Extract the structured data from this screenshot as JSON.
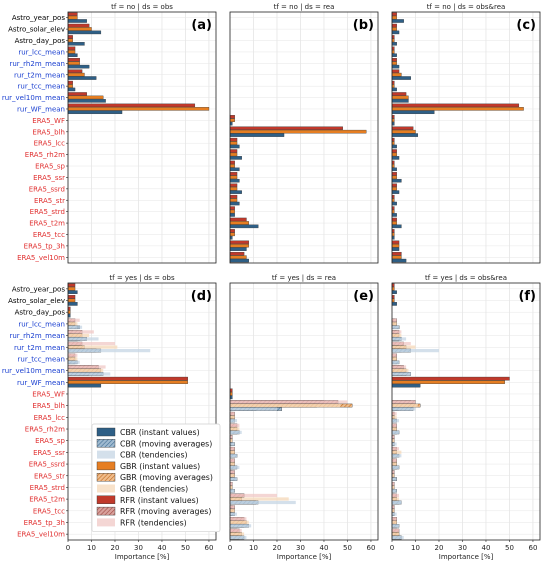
{
  "chart_data": {
    "type": "bar",
    "orientation": "horizontal",
    "xlabel": "Importance [%]",
    "xlim": [
      0,
      63
    ],
    "xticks": [
      0,
      10,
      20,
      30,
      40,
      50,
      60
    ],
    "grid": true,
    "features": [
      {
        "name": "Astro_year_pos",
        "color": "#000000"
      },
      {
        "name": "Astro_solar_elev",
        "color": "#000000"
      },
      {
        "name": "Astro_day_pos",
        "color": "#000000"
      },
      {
        "name": "rur_lcc_mean",
        "color": "#1a3fd0"
      },
      {
        "name": "rur_rh2m_mean",
        "color": "#1a3fd0"
      },
      {
        "name": "rur_t2m_mean",
        "color": "#1a3fd0"
      },
      {
        "name": "rur_tcc_mean",
        "color": "#1a3fd0"
      },
      {
        "name": "rur_vel10m_mean",
        "color": "#1a3fd0"
      },
      {
        "name": "rur_WF_mean",
        "color": "#1a3fd0"
      },
      {
        "name": "ERA5_WF",
        "color": "#e03030"
      },
      {
        "name": "ERA5_blh",
        "color": "#e03030"
      },
      {
        "name": "ERA5_lcc",
        "color": "#e03030"
      },
      {
        "name": "ERA5_rh2m",
        "color": "#e03030"
      },
      {
        "name": "ERA5_sp",
        "color": "#e03030"
      },
      {
        "name": "ERA5_ssr",
        "color": "#e03030"
      },
      {
        "name": "ERA5_ssrd",
        "color": "#e03030"
      },
      {
        "name": "ERA5_str",
        "color": "#e03030"
      },
      {
        "name": "ERA5_strd",
        "color": "#e03030"
      },
      {
        "name": "ERA5_t2m",
        "color": "#e03030"
      },
      {
        "name": "ERA5_tcc",
        "color": "#e03030"
      },
      {
        "name": "ERA5_tp_3h",
        "color": "#e03030"
      },
      {
        "name": "ERA5_vel10m",
        "color": "#e03030"
      }
    ],
    "legend": {
      "placement": "lower-left of panel (d)",
      "entries": [
        {
          "label": "CBR (instant values)",
          "model": "CBR",
          "kind": "instant"
        },
        {
          "label": "CBR (moving averages)",
          "model": "CBR",
          "kind": "moving"
        },
        {
          "label": "CBR (tendencies)",
          "model": "CBR",
          "kind": "tendency"
        },
        {
          "label": "GBR (instant values)",
          "model": "GBR",
          "kind": "instant"
        },
        {
          "label": "GBR (moving averages)",
          "model": "GBR",
          "kind": "moving"
        },
        {
          "label": "GBR (tendencies)",
          "model": "GBR",
          "kind": "tendency"
        },
        {
          "label": "RFR (instant values)",
          "model": "RFR",
          "kind": "instant"
        },
        {
          "label": "RFR (moving averages)",
          "model": "RFR",
          "kind": "moving"
        },
        {
          "label": "RFR (tendencies)",
          "model": "RFR",
          "kind": "tendency"
        }
      ]
    },
    "colors": {
      "RFR": {
        "instant": "#c0392b",
        "moving": "#c98b86",
        "tendency": "#f0c8c5"
      },
      "GBR": {
        "instant": "#e67e22",
        "moving": "#e8a66a",
        "tendency": "#f6d8b8"
      },
      "CBR": {
        "instant": "#2e5f86",
        "moving": "#6e95b5",
        "tendency": "#c6d6e4"
      }
    },
    "panels": [
      {
        "title": "tf = no | ds = obs",
        "letter": "(a)",
        "features": [
          "Astro_year_pos",
          "Astro_solar_elev",
          "Astro_day_pos",
          "rur_lcc_mean",
          "rur_rh2m_mean",
          "rur_t2m_mean",
          "rur_tcc_mean",
          "rur_vel10m_mean",
          "rur_WF_mean"
        ],
        "RFR": {
          "instant": [
            4,
            9,
            2,
            3,
            5,
            6,
            2,
            8,
            54
          ]
        },
        "GBR": {
          "instant": [
            4,
            10,
            2,
            3,
            5,
            7,
            2,
            15,
            60
          ]
        },
        "CBR": {
          "instant": [
            8,
            14,
            7,
            4,
            9,
            12,
            3,
            16,
            23
          ]
        }
      },
      {
        "title": "tf = no | ds = rea",
        "letter": "(b)",
        "features": [
          "ERA5_WF",
          "ERA5_blh",
          "ERA5_lcc",
          "ERA5_rh2m",
          "ERA5_sp",
          "ERA5_ssr",
          "ERA5_ssrd",
          "ERA5_str",
          "ERA5_strd",
          "ERA5_t2m",
          "ERA5_tcc",
          "ERA5_tp_3h",
          "ERA5_vel10m"
        ],
        "RFR": {
          "instant": [
            2,
            48,
            3,
            3,
            2,
            3,
            3,
            3,
            2,
            7,
            2,
            8,
            6
          ]
        },
        "GBR": {
          "instant": [
            2,
            58,
            3,
            3,
            2,
            3,
            3,
            3,
            2,
            8,
            2,
            8,
            7
          ]
        },
        "CBR": {
          "instant": [
            1,
            23,
            4,
            5,
            4,
            4,
            5,
            4,
            2,
            12,
            1,
            7,
            8
          ]
        }
      },
      {
        "title": "tf = no | ds = obs&rea",
        "letter": "(c)",
        "features": [
          "Astro_year_pos",
          "Astro_solar_elev",
          "Astro_day_pos",
          "rur_lcc_mean",
          "rur_rh2m_mean",
          "rur_t2m_mean",
          "rur_tcc_mean",
          "rur_vel10m_mean",
          "rur_WF_mean",
          "ERA5_WF",
          "ERA5_blh",
          "ERA5_lcc",
          "ERA5_rh2m",
          "ERA5_sp",
          "ERA5_ssr",
          "ERA5_ssrd",
          "ERA5_str",
          "ERA5_strd",
          "ERA5_t2m",
          "ERA5_tcc",
          "ERA5_tp_3h",
          "ERA5_vel10m"
        ],
        "RFR": {
          "instant": [
            2,
            2,
            1,
            1,
            2,
            3,
            1,
            6,
            54,
            1,
            9,
            1,
            2,
            1,
            2,
            2,
            1,
            1,
            2,
            1,
            3,
            4
          ]
        },
        "GBR": {
          "instant": [
            2,
            2,
            1,
            1,
            2,
            4,
            1,
            7,
            56,
            1,
            10,
            1,
            2,
            1,
            2,
            2,
            1,
            1,
            2,
            1,
            3,
            4
          ]
        },
        "CBR": {
          "instant": [
            5,
            3,
            2,
            2,
            3,
            8,
            2,
            7,
            18,
            1,
            11,
            2,
            3,
            2,
            4,
            3,
            2,
            2,
            4,
            1,
            3,
            6
          ]
        }
      },
      {
        "title": "tf = yes | ds = obs",
        "letter": "(d)",
        "features": [
          "Astro_year_pos",
          "Astro_solar_elev",
          "Astro_day_pos",
          "rur_lcc_mean",
          "rur_rh2m_mean",
          "rur_t2m_mean",
          "rur_tcc_mean",
          "rur_vel10m_mean",
          "rur_WF_mean"
        ],
        "RFR": {
          "instant": [
            3,
            3,
            1,
            1,
            2,
            4,
            1,
            10,
            51
          ],
          "moving": [
            0,
            0,
            0,
            3,
            6,
            6,
            3,
            13,
            0
          ],
          "tendency": [
            0,
            0,
            0,
            5,
            11,
            20,
            4,
            16,
            0
          ]
        },
        "GBR": {
          "instant": [
            3,
            3,
            1,
            1,
            2,
            5,
            1,
            13,
            51
          ],
          "moving": [
            0,
            0,
            0,
            3,
            6,
            7,
            3,
            14,
            0
          ],
          "tendency": [
            0,
            0,
            0,
            4,
            9,
            21,
            4,
            15,
            0
          ]
        },
        "CBR": {
          "instant": [
            4,
            4,
            1,
            5,
            5,
            12,
            3,
            9,
            14
          ],
          "moving": [
            0,
            0,
            0,
            4,
            8,
            14,
            4,
            15,
            0
          ],
          "tendency": [
            0,
            0,
            0,
            6,
            13,
            35,
            5,
            18,
            0
          ]
        }
      },
      {
        "title": "tf = yes | ds = rea",
        "letter": "(e)",
        "features": [
          "ERA5_WF",
          "ERA5_blh",
          "ERA5_lcc",
          "ERA5_rh2m",
          "ERA5_sp",
          "ERA5_ssr",
          "ERA5_ssrd",
          "ERA5_str",
          "ERA5_strd",
          "ERA5_t2m",
          "ERA5_tcc",
          "ERA5_tp_3h",
          "ERA5_vel10m"
        ],
        "RFR": {
          "instant": [
            1,
            40,
            1,
            2,
            1,
            1,
            1,
            1,
            1,
            6,
            1,
            5,
            3
          ],
          "moving": [
            0,
            46,
            2,
            3,
            1,
            2,
            2,
            2,
            1,
            6,
            2,
            6,
            4
          ],
          "tendency": [
            0,
            50,
            2,
            4,
            1,
            2,
            2,
            2,
            1,
            20,
            2,
            7,
            5
          ]
        },
        "GBR": {
          "instant": [
            1,
            37,
            1,
            2,
            1,
            1,
            1,
            1,
            1,
            5,
            1,
            5,
            3
          ],
          "moving": [
            0,
            52,
            2,
            3,
            1,
            2,
            2,
            2,
            1,
            5,
            2,
            7,
            5
          ],
          "tendency": [
            0,
            47,
            2,
            4,
            1,
            2,
            2,
            2,
            1,
            25,
            2,
            8,
            6
          ]
        },
        "CBR": {
          "instant": [
            1,
            11,
            2,
            3,
            1,
            2,
            2,
            2,
            1,
            11,
            1,
            6,
            4
          ],
          "moving": [
            0,
            22,
            2,
            4,
            2,
            3,
            3,
            3,
            2,
            12,
            2,
            8,
            6
          ],
          "tendency": [
            0,
            20,
            3,
            5,
            2,
            3,
            4,
            3,
            2,
            28,
            3,
            9,
            7
          ]
        }
      },
      {
        "title": "tf = yes | ds = obs&rea",
        "letter": "(f)",
        "features": [
          "Astro_year_pos",
          "Astro_solar_elev",
          "Astro_day_pos",
          "rur_lcc_mean",
          "rur_rh2m_mean",
          "rur_t2m_mean",
          "rur_tcc_mean",
          "rur_vel10m_mean",
          "rur_WF_mean",
          "ERA5_WF",
          "ERA5_blh",
          "ERA5_lcc",
          "ERA5_rh2m",
          "ERA5_sp",
          "ERA5_ssr",
          "ERA5_ssrd",
          "ERA5_str",
          "ERA5_strd",
          "ERA5_t2m",
          "ERA5_tcc",
          "ERA5_tp_3h",
          "ERA5_vel10m"
        ],
        "RFR": {
          "instant": [
            1,
            1,
            0,
            1,
            2,
            3,
            1,
            4,
            50,
            0,
            8,
            1,
            1,
            1,
            1,
            1,
            1,
            1,
            1,
            1,
            1,
            2
          ],
          "moving": [
            0,
            0,
            0,
            2,
            3,
            5,
            2,
            5,
            0,
            0,
            10,
            1,
            2,
            1,
            2,
            2,
            1,
            1,
            2,
            1,
            2,
            3
          ],
          "tendency": [
            0,
            0,
            0,
            2,
            4,
            8,
            2,
            6,
            0,
            0,
            10,
            2,
            2,
            1,
            3,
            2,
            1,
            1,
            3,
            1,
            2,
            3
          ]
        },
        "GBR": {
          "instant": [
            1,
            1,
            0,
            1,
            2,
            3,
            1,
            5,
            48,
            0,
            9,
            1,
            1,
            1,
            1,
            1,
            1,
            1,
            1,
            1,
            1,
            2
          ],
          "moving": [
            0,
            0,
            0,
            2,
            3,
            6,
            2,
            6,
            0,
            0,
            12,
            1,
            2,
            1,
            2,
            2,
            1,
            1,
            2,
            1,
            2,
            3
          ],
          "tendency": [
            0,
            0,
            0,
            2,
            4,
            10,
            2,
            7,
            0,
            0,
            11,
            2,
            2,
            1,
            4,
            2,
            1,
            1,
            3,
            1,
            2,
            3
          ]
        },
        "CBR": {
          "instant": [
            2,
            2,
            0,
            3,
            3,
            4,
            2,
            6,
            12,
            0,
            3,
            2,
            2,
            1,
            2,
            2,
            2,
            1,
            3,
            1,
            2,
            4
          ],
          "moving": [
            0,
            0,
            0,
            3,
            4,
            8,
            3,
            8,
            0,
            0,
            9,
            2,
            3,
            1,
            3,
            3,
            2,
            2,
            4,
            1,
            3,
            4
          ],
          "tendency": [
            0,
            0,
            0,
            3,
            6,
            20,
            3,
            8,
            0,
            0,
            10,
            3,
            3,
            2,
            4,
            3,
            2,
            2,
            4,
            2,
            3,
            5
          ]
        }
      }
    ]
  }
}
